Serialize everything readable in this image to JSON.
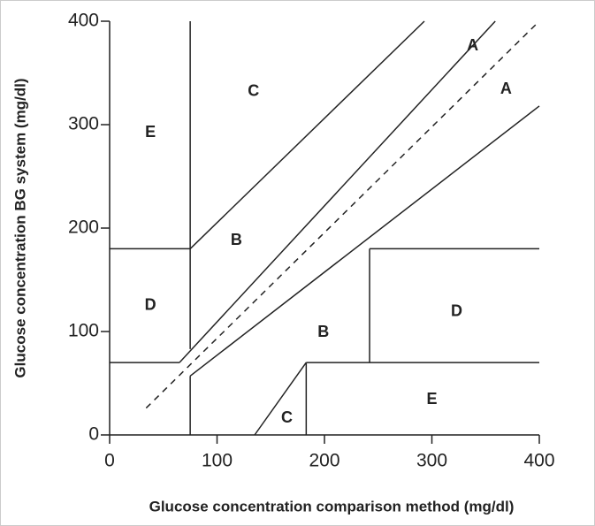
{
  "chart_data": {
    "type": "line",
    "xlabel": "Glucose concentration comparison method (mg/dl)",
    "ylabel": "Glucose concentration BG system (mg/dl)",
    "xlim": [
      0,
      400
    ],
    "ylim": [
      0,
      400
    ],
    "xticks": [
      0,
      100,
      200,
      300,
      400
    ],
    "yticks": [
      0,
      100,
      200,
      300,
      400
    ],
    "color": "#222222",
    "lines": [
      {
        "x": [
          75,
          75
        ],
        "y": [
          400,
          83
        ]
      },
      {
        "x": [
          0,
          75
        ],
        "y": [
          180,
          180
        ]
      },
      {
        "x": [
          75,
          293
        ],
        "y": [
          180,
          400
        ]
      },
      {
        "x": [
          0,
          65
        ],
        "y": [
          70,
          70
        ]
      },
      {
        "x": [
          65,
          359
        ],
        "y": [
          70,
          400
        ]
      },
      {
        "x": [
          75,
          400
        ],
        "y": [
          57,
          318
        ]
      },
      {
        "x": [
          75,
          75
        ],
        "y": [
          0,
          57
        ]
      },
      {
        "x": [
          34,
          398
        ],
        "y": [
          26,
          398
        ],
        "dashed": true
      },
      {
        "x": [
          135,
          183
        ],
        "y": [
          0,
          70
        ]
      },
      {
        "x": [
          183,
          183
        ],
        "y": [
          0,
          70
        ]
      },
      {
        "x": [
          183,
          400
        ],
        "y": [
          70,
          70
        ]
      },
      {
        "x": [
          242,
          242
        ],
        "y": [
          70,
          180
        ]
      },
      {
        "x": [
          242,
          400
        ],
        "y": [
          180,
          180
        ]
      }
    ],
    "annotations": [
      {
        "text": "A",
        "x": 338,
        "y": 376
      },
      {
        "text": "A",
        "x": 369,
        "y": 334
      },
      {
        "text": "C",
        "x": 134,
        "y": 332
      },
      {
        "text": "E",
        "x": 38,
        "y": 292
      },
      {
        "text": "B",
        "x": 118,
        "y": 188
      },
      {
        "text": "D",
        "x": 38,
        "y": 125
      },
      {
        "text": "D",
        "x": 323,
        "y": 119
      },
      {
        "text": "B",
        "x": 199,
        "y": 99
      },
      {
        "text": "E",
        "x": 300,
        "y": 34
      },
      {
        "text": "C",
        "x": 165,
        "y": 16
      }
    ]
  }
}
